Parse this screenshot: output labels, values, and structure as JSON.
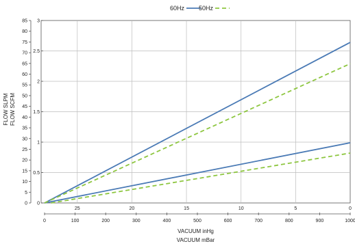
{
  "chart_data": {
    "type": "line",
    "legend": {
      "placement": "top-center",
      "entries": [
        {
          "label": "60Hz",
          "color": "#4a7ab5",
          "style": "solid"
        },
        {
          "label": "50Hz",
          "color": "#8dc63f",
          "style": "dashed"
        }
      ]
    },
    "axes": {
      "y_left_outer": {
        "label": "FLOW SLPM",
        "range": [
          0,
          85
        ],
        "ticks": [
          "0",
          "5",
          "10",
          "15",
          "20",
          "25",
          "30",
          "35",
          "40",
          "45",
          "50",
          "55",
          "60",
          "65",
          "70",
          "75",
          "80",
          "85"
        ]
      },
      "y_left_inner": {
        "label": "FLOW SCFM",
        "range": [
          0,
          3
        ],
        "ticks": [
          "0",
          "0.5",
          "1",
          "1.5",
          "2",
          "2.5",
          "3"
        ]
      },
      "x_top": {
        "label": "VACUUM inHg",
        "range": [
          28,
          0
        ],
        "ticks": [
          "25",
          "20",
          "15",
          "10",
          "5",
          "0"
        ]
      },
      "x_bottom": {
        "label": "VACUUM mBar",
        "range": [
          0,
          1000
        ],
        "ticks": [
          "0",
          "100",
          "200",
          "300",
          "400",
          "500",
          "600",
          "700",
          "800",
          "900",
          "1000"
        ]
      }
    },
    "grid": true,
    "series": [
      {
        "name": "60Hz",
        "style": "solid",
        "color": "#4a7ab5",
        "x_inHg": [
          28,
          0
        ],
        "y_scfm": [
          0,
          2.64
        ]
      },
      {
        "name": "60Hz",
        "style": "solid",
        "color": "#4a7ab5",
        "x_inHg": [
          28,
          0
        ],
        "y_scfm": [
          0,
          0.99
        ]
      },
      {
        "name": "50Hz",
        "style": "dashed",
        "color": "#8dc63f",
        "x_inHg": [
          28,
          0
        ],
        "y_scfm": [
          0,
          2.29
        ]
      },
      {
        "name": "50Hz",
        "style": "dashed",
        "color": "#8dc63f",
        "x_inHg": [
          27.4,
          0
        ],
        "y_scfm": [
          0,
          0.82
        ]
      }
    ]
  }
}
